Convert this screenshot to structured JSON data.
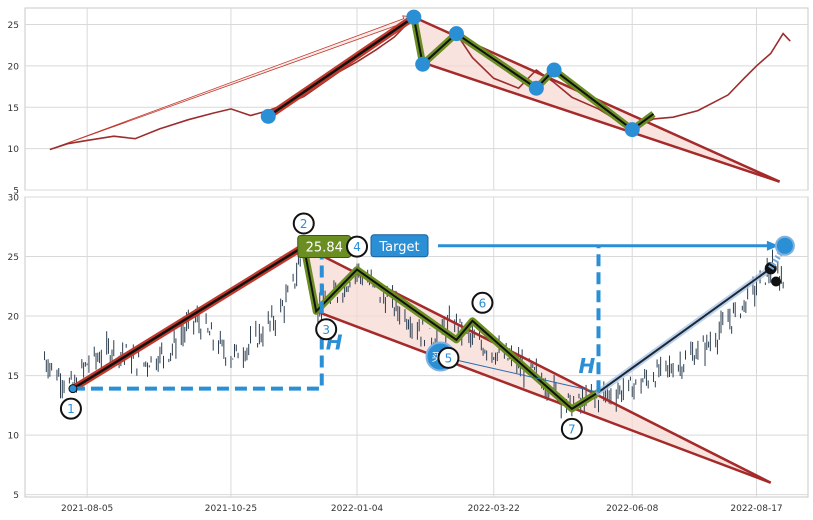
{
  "chart_data": [
    {
      "type": "line",
      "panel": "top",
      "ylim": [
        5,
        27
      ],
      "yticks": [
        5,
        10,
        15,
        20,
        25
      ],
      "grid": true,
      "series": [
        {
          "role": "price_line",
          "color": "#9b2d2d",
          "points": [
            [
              "2021-07-15",
              9.9
            ],
            [
              "2021-07-25",
              10.6
            ],
            [
              "2021-08-05",
              11.0
            ],
            [
              "2021-08-20",
              11.5
            ],
            [
              "2021-09-01",
              11.2
            ],
            [
              "2021-09-15",
              12.4
            ],
            [
              "2021-10-01",
              13.5
            ],
            [
              "2021-10-15",
              14.3
            ],
            [
              "2021-10-25",
              14.8
            ],
            [
              "2021-11-05",
              14.0
            ],
            [
              "2021-11-15",
              14.6
            ],
            [
              "2021-11-25",
              15.4
            ],
            [
              "2021-12-05",
              16.3
            ],
            [
              "2021-12-15",
              17.8
            ],
            [
              "2021-12-25",
              19.3
            ],
            [
              "2022-01-04",
              20.5
            ],
            [
              "2022-01-15",
              22.0
            ],
            [
              "2022-01-25",
              23.5
            ],
            [
              "2022-02-05",
              25.9
            ],
            [
              "2022-02-10",
              20.2
            ],
            [
              "2022-02-20",
              22.0
            ],
            [
              "2022-03-01",
              23.9
            ],
            [
              "2022-03-10",
              21.0
            ],
            [
              "2022-03-22",
              18.5
            ],
            [
              "2022-04-05",
              17.3
            ],
            [
              "2022-04-15",
              19.5
            ],
            [
              "2022-04-25",
              18.0
            ],
            [
              "2022-05-05",
              16.2
            ],
            [
              "2022-05-20",
              14.8
            ],
            [
              "2022-06-08",
              12.3
            ],
            [
              "2022-06-20",
              13.6
            ],
            [
              "2022-07-01",
              13.8
            ],
            [
              "2022-07-15",
              14.6
            ],
            [
              "2022-08-01",
              16.5
            ],
            [
              "2022-08-10",
              18.5
            ],
            [
              "2022-08-17",
              20.0
            ],
            [
              "2022-08-25",
              21.5
            ],
            [
              "2022-09-01",
              23.9
            ],
            [
              "2022-09-05",
              23.0
            ]
          ]
        },
        {
          "role": "pattern_zigzag",
          "color": "#6b8e23",
          "points": [
            [
              "2022-02-05",
              25.9
            ],
            [
              "2022-02-10",
              20.2
            ],
            [
              "2022-03-01",
              23.9
            ],
            [
              "2022-04-15",
              17.3
            ],
            [
              "2022-04-25",
              19.5
            ],
            [
              "2022-06-08",
              12.3
            ],
            [
              "2022-06-20",
              14.2
            ]
          ]
        },
        {
          "role": "pivot_markers",
          "color": "#2b8fd6",
          "points": [
            [
              "2021-11-15",
              13.9
            ],
            [
              "2022-02-05",
              25.9
            ],
            [
              "2022-02-10",
              20.2
            ],
            [
              "2022-03-01",
              23.9
            ],
            [
              "2022-04-15",
              17.3
            ],
            [
              "2022-04-25",
              19.5
            ],
            [
              "2022-06-08",
              12.3
            ]
          ]
        },
        {
          "role": "wedge_upper",
          "color": "#a52a2a",
          "points": [
            [
              "2022-02-05",
              25.9
            ],
            [
              "2022-08-30",
              6.0
            ]
          ]
        },
        {
          "role": "wedge_lower",
          "color": "#a52a2a",
          "points": [
            [
              "2022-02-10",
              20.4
            ],
            [
              "2022-08-30",
              6.0
            ]
          ]
        },
        {
          "role": "impulse_leg",
          "color": "#c0392b",
          "points": [
            [
              "2021-11-15",
              13.9
            ],
            [
              "2022-02-05",
              25.9
            ]
          ]
        },
        {
          "role": "projection_arrow",
          "color": "#c0392b",
          "points": [
            [
              "2021-07-15",
              9.9
            ],
            [
              "2022-02-05",
              25.9
            ]
          ]
        }
      ]
    },
    {
      "type": "line",
      "panel": "bottom",
      "ylim": [
        4.8,
        30
      ],
      "yticks": [
        5,
        10,
        15,
        20,
        25,
        30
      ],
      "grid": true,
      "xticks": [
        "2021-08-05",
        "2021-10-25",
        "2022-01-04",
        "2022-03-22",
        "2022-06-08",
        "2022-08-17"
      ],
      "series": [
        {
          "role": "candles_close",
          "color": "#2c3e50",
          "points": [
            [
              "2021-07-10",
              16.8
            ],
            [
              "2021-07-20",
              15.0
            ],
            [
              "2021-07-28",
              14.0
            ],
            [
              "2021-08-05",
              16.0
            ],
            [
              "2021-08-20",
              17.3
            ],
            [
              "2021-09-05",
              16.0
            ],
            [
              "2021-09-20",
              17.0
            ],
            [
              "2021-10-05",
              19.8
            ],
            [
              "2021-10-15",
              18.0
            ],
            [
              "2021-10-25",
              16.6
            ],
            [
              "2021-11-05",
              17.5
            ],
            [
              "2021-11-20",
              20.0
            ],
            [
              "2021-11-28",
              22.0
            ],
            [
              "2021-12-05",
              25.84
            ],
            [
              "2021-12-12",
              20.4
            ],
            [
              "2021-12-25",
              22.0
            ],
            [
              "2022-01-04",
              23.9
            ],
            [
              "2022-01-20",
              21.5
            ],
            [
              "2022-02-05",
              19.4
            ],
            [
              "2022-02-15",
              18.0
            ],
            [
              "2022-02-28",
              19.5
            ],
            [
              "2022-03-10",
              18.0
            ],
            [
              "2022-03-22",
              17.0
            ],
            [
              "2022-04-05",
              16.0
            ],
            [
              "2022-04-20",
              14.5
            ],
            [
              "2022-05-05",
              12.4
            ],
            [
              "2022-05-20",
              13.2
            ],
            [
              "2022-06-08",
              14.0
            ],
            [
              "2022-06-20",
              15.0
            ],
            [
              "2022-07-05",
              16.0
            ],
            [
              "2022-07-20",
              17.5
            ],
            [
              "2022-08-01",
              19.5
            ],
            [
              "2022-08-10",
              21.0
            ],
            [
              "2022-08-17",
              22.5
            ],
            [
              "2022-08-25",
              24.0
            ],
            [
              "2022-09-01",
              23.0
            ]
          ]
        },
        {
          "role": "pattern_zigzag",
          "color": "#6b8e23",
          "points": [
            [
              "2021-12-05",
              25.84
            ],
            [
              "2021-12-12",
              20.4
            ],
            [
              "2022-01-04",
              23.9
            ],
            [
              "2022-03-01",
              18.0
            ],
            [
              "2022-03-10",
              19.6
            ],
            [
              "2022-05-05",
              12.2
            ],
            [
              "2022-05-20",
              13.6
            ]
          ]
        },
        {
          "role": "wedge_upper",
          "color": "#a52a2a",
          "points": [
            [
              "2021-12-05",
              25.84
            ],
            [
              "2022-08-25",
              6.0
            ]
          ]
        },
        {
          "role": "wedge_lower",
          "color": "#a52a2a",
          "points": [
            [
              "2021-12-12",
              20.4
            ],
            [
              "2022-08-25",
              6.0
            ]
          ]
        },
        {
          "role": "impulse_leg",
          "color": "#c0392b",
          "points": [
            [
              "2021-07-28",
              13.9
            ],
            [
              "2021-12-05",
              25.84
            ]
          ]
        },
        {
          "role": "projected_path",
          "color": "#1c2833",
          "points": [
            [
              "2022-05-20",
              13.6
            ],
            [
              "2022-08-25",
              24.0
            ]
          ]
        },
        {
          "role": "target_extension",
          "color": "#2b8fd6",
          "points": [
            [
              "2022-08-25",
              24.0
            ],
            [
              "2022-09-02",
              25.9
            ]
          ]
        },
        {
          "role": "buy_trendline",
          "color": "#2b6cb0",
          "points": [
            [
              "2022-02-20",
              16.6
            ],
            [
              "2022-05-20",
              13.6
            ]
          ]
        }
      ],
      "pivot_labels": [
        {
          "label": "1",
          "x": "2021-07-28",
          "y": 13.9
        },
        {
          "label": "2",
          "x": "2021-12-05",
          "y": 25.84
        },
        {
          "label": "3",
          "x": "2021-12-12",
          "y": 20.4
        },
        {
          "label": "4",
          "x": "2022-01-04",
          "y": 23.9
        },
        {
          "label": "5",
          "x": "2022-03-01",
          "y": 18.0
        },
        {
          "label": "6",
          "x": "2022-03-10",
          "y": 19.6
        },
        {
          "label": "7",
          "x": "2022-05-05",
          "y": 12.2
        }
      ],
      "annotations": {
        "peak_value": "25.84",
        "target_label": "Target",
        "target_value": 25.9,
        "buy_label": "买1",
        "height_label": "H",
        "height_level": 13.9
      }
    }
  ],
  "colors": {
    "grid": "#d9d9d9",
    "axis_text": "#333333",
    "wedge_fill": "#f7d7d2",
    "wedge_edge": "#a52a2a",
    "accent_blue": "#2b8fd6",
    "accent_green": "#6b8e23",
    "impulse": "#c0392b"
  }
}
